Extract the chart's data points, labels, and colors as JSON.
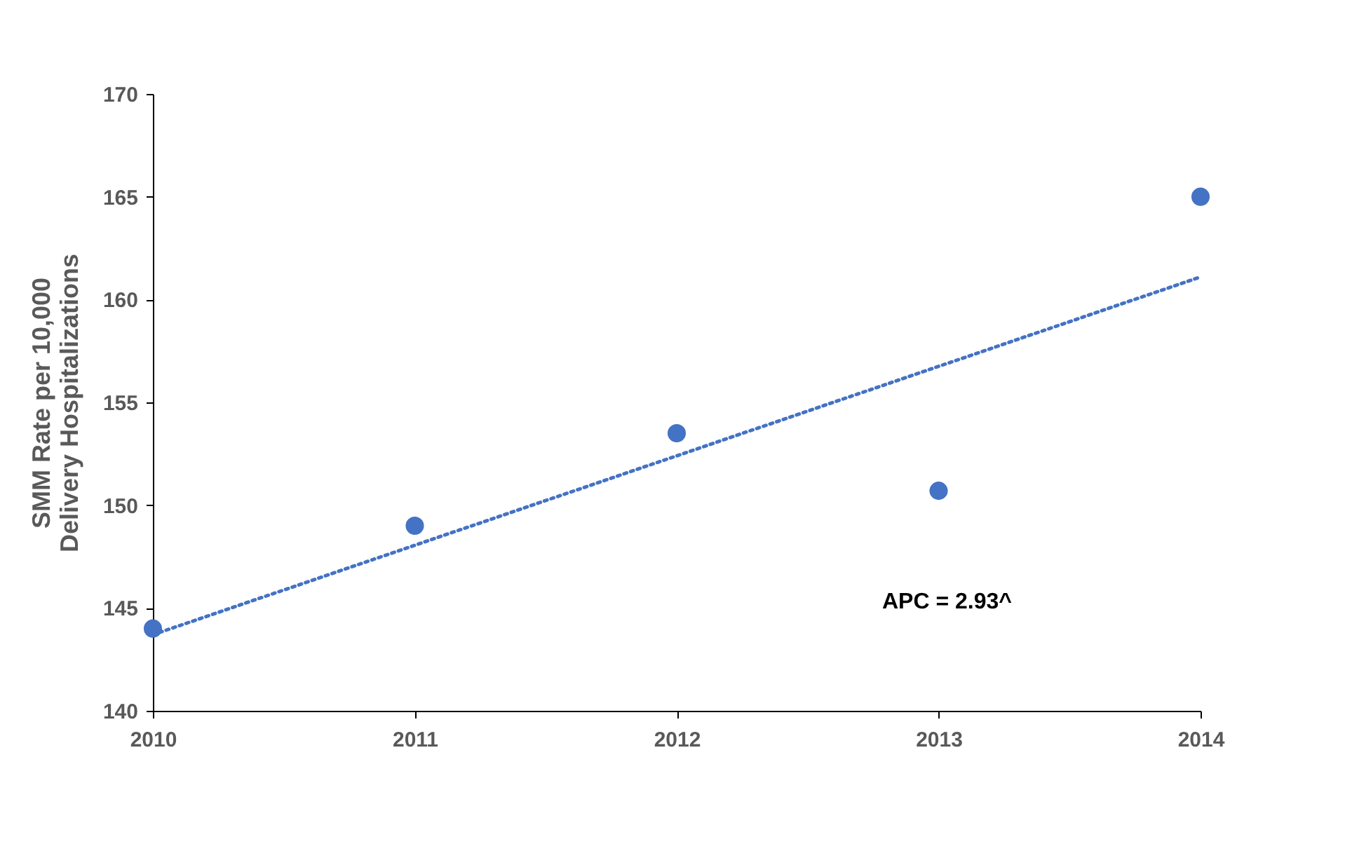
{
  "chart_data": {
    "type": "scatter",
    "ylabel": "SMM Rate per 10,000 Delivery Hospitalizations",
    "x": [
      2010,
      2011,
      2012,
      2013,
      2014
    ],
    "series": [
      {
        "color": "#4472c4",
        "marker": "circle",
        "values": [
          144.0,
          149.0,
          153.5,
          150.7,
          165.0
        ]
      },
      {
        "type": "line",
        "color": "#4472c4",
        "line_style": "dotted",
        "x": [
          2010,
          2014
        ],
        "values": [
          143.7,
          161.1
        ]
      }
    ],
    "xlim": [
      2010,
      2014
    ],
    "xticks": [
      2010,
      2011,
      2012,
      2013,
      2014
    ],
    "ylim": [
      140,
      170
    ],
    "yticks": [
      140,
      145,
      150,
      155,
      160,
      165,
      170
    ],
    "grid": false,
    "annotations": [
      "APC = 2.93^"
    ]
  }
}
